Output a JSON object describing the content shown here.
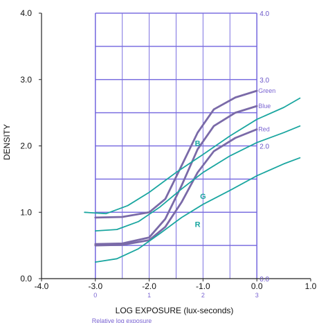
{
  "chart_data": {
    "type": "line",
    "title": "",
    "xlabel": "LOG EXPOSURE (lux-seconds)",
    "ylabel": "DENSITY",
    "xlim": [
      -4.0,
      1.0
    ],
    "ylim": [
      0.0,
      4.0
    ],
    "x_ticks": [
      "-4.0",
      "-3.0",
      "-2.0",
      "-1.0",
      "0.0",
      "1.0"
    ],
    "y_ticks": [
      "0.0",
      "1.0",
      "2.0",
      "3.0",
      "4.0"
    ],
    "grid_x": [
      -3.0,
      -2.5,
      -2.0,
      -1.5,
      -1.0,
      -0.5,
      0.0
    ],
    "grid_y": [
      0.5,
      1.0,
      1.5,
      2.0,
      2.5,
      3.0,
      3.5,
      4.0
    ],
    "right_axis_ticks": [
      "4.0",
      "3.0",
      "2.0",
      "0.0"
    ],
    "bottom_axis_ticks": [
      "0",
      "1",
      "2",
      "3"
    ],
    "bottom_caption": "Relative log exposure",
    "colors": {
      "grid": "#7b6fe0",
      "overlay": "#7a6aa8",
      "teal": "#1aa6a0"
    },
    "series": [
      {
        "name": "Green",
        "color": "#7a6aa8",
        "points": [
          [
            -3.0,
            0.92
          ],
          [
            -2.5,
            0.93
          ],
          [
            -2.0,
            1.0
          ],
          [
            -1.7,
            1.2
          ],
          [
            -1.4,
            1.7
          ],
          [
            -1.1,
            2.2
          ],
          [
            -0.8,
            2.55
          ],
          [
            -0.4,
            2.73
          ],
          [
            0.0,
            2.83
          ]
        ]
      },
      {
        "name": "Blue",
        "color": "#7a6aa8",
        "points": [
          [
            -3.0,
            0.52
          ],
          [
            -2.5,
            0.53
          ],
          [
            -2.0,
            0.62
          ],
          [
            -1.7,
            0.9
          ],
          [
            -1.4,
            1.4
          ],
          [
            -1.1,
            1.95
          ],
          [
            -0.8,
            2.3
          ],
          [
            -0.4,
            2.5
          ],
          [
            0.0,
            2.6
          ]
        ]
      },
      {
        "name": "Red",
        "color": "#7a6aa8",
        "points": [
          [
            -3.0,
            0.5
          ],
          [
            -2.5,
            0.51
          ],
          [
            -2.0,
            0.58
          ],
          [
            -1.7,
            0.78
          ],
          [
            -1.4,
            1.15
          ],
          [
            -1.1,
            1.6
          ],
          [
            -0.8,
            1.92
          ],
          [
            -0.4,
            2.12
          ],
          [
            0.0,
            2.25
          ]
        ]
      },
      {
        "name": "B",
        "color": "#1aa6a0",
        "points": [
          [
            -3.2,
            1.0
          ],
          [
            -2.8,
            0.98
          ],
          [
            -2.4,
            1.1
          ],
          [
            -2.0,
            1.3
          ],
          [
            -1.5,
            1.6
          ],
          [
            -1.0,
            1.87
          ],
          [
            -0.5,
            2.15
          ],
          [
            0.0,
            2.4
          ],
          [
            0.5,
            2.58
          ],
          [
            0.8,
            2.72
          ]
        ]
      },
      {
        "name": "G",
        "color": "#1aa6a0",
        "points": [
          [
            -3.0,
            0.72
          ],
          [
            -2.6,
            0.74
          ],
          [
            -2.2,
            0.86
          ],
          [
            -1.8,
            1.08
          ],
          [
            -1.4,
            1.35
          ],
          [
            -1.0,
            1.6
          ],
          [
            -0.5,
            1.85
          ],
          [
            0.0,
            2.05
          ],
          [
            0.5,
            2.2
          ],
          [
            0.8,
            2.3
          ]
        ]
      },
      {
        "name": "R",
        "color": "#1aa6a0",
        "points": [
          [
            -3.0,
            0.25
          ],
          [
            -2.6,
            0.3
          ],
          [
            -2.2,
            0.45
          ],
          [
            -1.8,
            0.68
          ],
          [
            -1.4,
            0.92
          ],
          [
            -1.0,
            1.12
          ],
          [
            -0.5,
            1.33
          ],
          [
            0.0,
            1.55
          ],
          [
            0.5,
            1.73
          ],
          [
            0.8,
            1.82
          ]
        ]
      }
    ],
    "overlay_labels": [
      "Green",
      "Blue",
      "Red"
    ],
    "curve_labels": [
      "B",
      "G",
      "R"
    ]
  }
}
